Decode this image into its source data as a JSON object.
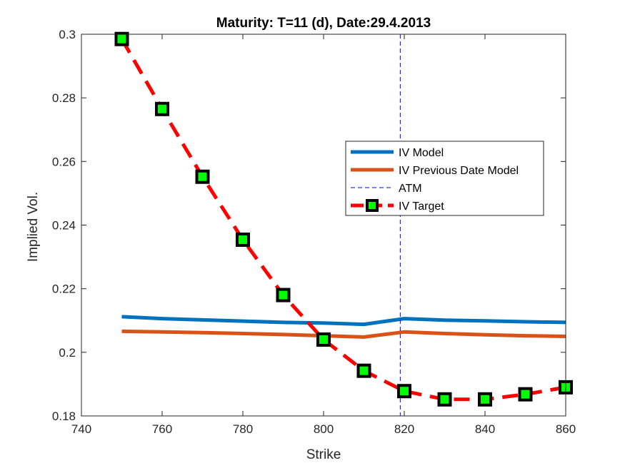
{
  "chart_data": {
    "type": "line",
    "title": "Maturity: T=11 (d), Date:29.4.2013",
    "xlabel": "Strike",
    "ylabel": "Implied Vol.",
    "xlim": [
      740,
      860
    ],
    "ylim": [
      0.18,
      0.3
    ],
    "xticks": [
      740,
      760,
      780,
      800,
      820,
      840,
      860
    ],
    "xtick_labels": [
      "740",
      "760",
      "780",
      "800",
      "820",
      "840",
      "860"
    ],
    "yticks": [
      0.18,
      0.2,
      0.22,
      0.24,
      0.26,
      0.28,
      0.3
    ],
    "ytick_labels": [
      "0.18",
      "0.2",
      "0.22",
      "0.24",
      "0.26",
      "0.28",
      "0.3"
    ],
    "grid": false,
    "legend_position": "right-center",
    "atm_strike": 819,
    "series": [
      {
        "name": "IV Model",
        "color": "#0072BD",
        "style": "solid",
        "x": [
          750,
          760,
          770,
          780,
          790,
          800,
          810,
          820,
          830,
          840,
          850,
          860
        ],
        "y": [
          0.2112,
          0.2106,
          0.2102,
          0.2098,
          0.2094,
          0.2092,
          0.2088,
          0.2106,
          0.2101,
          0.2099,
          0.2096,
          0.2094
        ]
      },
      {
        "name": "IV Previous Date Model",
        "color": "#D95319",
        "style": "solid",
        "x": [
          750,
          760,
          770,
          780,
          790,
          800,
          810,
          820,
          830,
          840,
          850,
          860
        ],
        "y": [
          0.2066,
          0.2064,
          0.2062,
          0.2059,
          0.2056,
          0.2052,
          0.2048,
          0.2064,
          0.2059,
          0.2055,
          0.2052,
          0.205
        ]
      },
      {
        "name": "ATM",
        "color": "#0000FF",
        "style": "dashed-vertical",
        "x": [
          819,
          819
        ],
        "y": [
          0.18,
          0.3
        ]
      },
      {
        "name": "IV Target",
        "color": "#FF0000",
        "marker_face": "#00FF00",
        "marker_edge": "#000000",
        "style": "dashed-markers",
        "x": [
          750,
          760,
          770,
          780,
          790,
          800,
          810,
          820,
          830,
          840,
          850,
          860
        ],
        "y": [
          0.2985,
          0.2765,
          0.2552,
          0.2354,
          0.218,
          0.204,
          0.1942,
          0.1878,
          0.1852,
          0.1852,
          0.1868,
          0.189
        ]
      }
    ]
  }
}
